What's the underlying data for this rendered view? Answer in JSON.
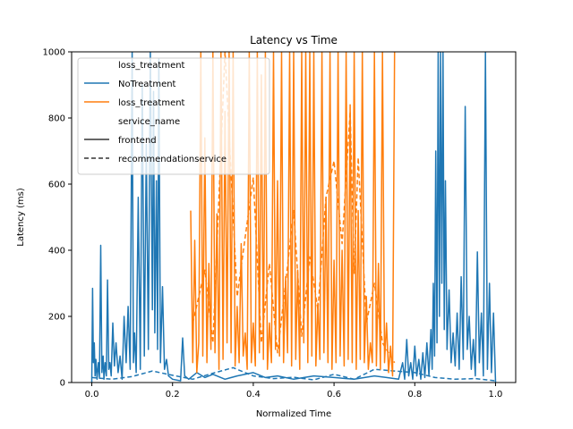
{
  "chart_data": {
    "type": "line",
    "title": "Latency vs Time",
    "xlabel": "Normalized Time",
    "ylabel": "Latency (ms)",
    "xlim": [
      -0.05,
      1.05
    ],
    "ylim": [
      0,
      1000
    ],
    "xticks": [
      0.0,
      0.2,
      0.4,
      0.6,
      0.8,
      1.0
    ],
    "xtick_labels": [
      "0.0",
      "0.2",
      "0.4",
      "0.6",
      "0.8",
      "1.0"
    ],
    "yticks": [
      0,
      200,
      400,
      600,
      800,
      1000
    ],
    "ytick_labels": [
      "0",
      "200",
      "400",
      "600",
      "800",
      "1000"
    ],
    "grid": false,
    "legend": {
      "placement": "upper-left",
      "hue_title": "loss_treatment",
      "style_title": "service_name",
      "entries": [
        {
          "label": "loss_treatment",
          "kind": "title"
        },
        {
          "label": "NoTreatment",
          "kind": "color",
          "color": "#1f77b4"
        },
        {
          "label": "loss_treatment",
          "kind": "color",
          "color": "#ff7f0e"
        },
        {
          "label": "service_name",
          "kind": "title"
        },
        {
          "label": "frontend",
          "kind": "style",
          "dash": "solid"
        },
        {
          "label": "recommendationservice",
          "kind": "style",
          "dash": "dashed"
        }
      ]
    },
    "series": [
      {
        "name": "NoTreatment / frontend",
        "color": "#1f77b4",
        "dash": "solid",
        "x": [
          0.0,
          0.002,
          0.004,
          0.006,
          0.008,
          0.01,
          0.013,
          0.016,
          0.019,
          0.022,
          0.025,
          0.028,
          0.03,
          0.033,
          0.036,
          0.039,
          0.042,
          0.045,
          0.048,
          0.052,
          0.056,
          0.06,
          0.065,
          0.07,
          0.075,
          0.08,
          0.085,
          0.09,
          0.095,
          0.1,
          0.103,
          0.106,
          0.11,
          0.115,
          0.12,
          0.125,
          0.13,
          0.135,
          0.14,
          0.145,
          0.15,
          0.153,
          0.156,
          0.16,
          0.163,
          0.166,
          0.17,
          0.175,
          0.18,
          0.185,
          0.19,
          0.2,
          0.22,
          0.225,
          0.23,
          0.24,
          0.26,
          0.28,
          0.3,
          0.33,
          0.36,
          0.4,
          0.43,
          0.46,
          0.5,
          0.55,
          0.6,
          0.65,
          0.7,
          0.73,
          0.76,
          0.77,
          0.775,
          0.78,
          0.785,
          0.79,
          0.795,
          0.8,
          0.805,
          0.81,
          0.815,
          0.82,
          0.825,
          0.83,
          0.835,
          0.84,
          0.843,
          0.846,
          0.849,
          0.852,
          0.855,
          0.858,
          0.861,
          0.864,
          0.867,
          0.87,
          0.873,
          0.876,
          0.88,
          0.885,
          0.89,
          0.895,
          0.9,
          0.905,
          0.91,
          0.915,
          0.92,
          0.925,
          0.93,
          0.935,
          0.94,
          0.945,
          0.95,
          0.955,
          0.96,
          0.965,
          0.97,
          0.975,
          0.98,
          0.985,
          0.99,
          0.995,
          1.0
        ],
        "y": [
          0,
          285,
          60,
          120,
          20,
          70,
          10,
          60,
          15,
          415,
          30,
          80,
          10,
          60,
          20,
          310,
          40,
          60,
          20,
          180,
          50,
          120,
          30,
          80,
          10,
          200,
          60,
          230,
          40,
          1000,
          60,
          150,
          30,
          560,
          40,
          900,
          80,
          720,
          100,
          1000,
          220,
          880,
          150,
          610,
          100,
          980,
          60,
          290,
          40,
          70,
          20,
          10,
          5,
          135,
          20,
          10,
          30,
          15,
          25,
          10,
          20,
          30,
          15,
          20,
          10,
          20,
          15,
          10,
          20,
          15,
          10,
          60,
          10,
          130,
          20,
          60,
          10,
          110,
          20,
          70,
          10,
          90,
          15,
          120,
          20,
          160,
          40,
          300,
          80,
          700,
          120,
          1000,
          200,
          1000,
          300,
          1000,
          160,
          610,
          100,
          280,
          60,
          150,
          50,
          210,
          40,
          320,
          70,
          835,
          100,
          200,
          40,
          130,
          20,
          395,
          60,
          210,
          20,
          1000,
          40,
          300,
          30,
          210,
          0
        ],
        "y_note": "values above 1000 clipped to axis limit"
      },
      {
        "name": "NoTreatment / recommendationservice",
        "color": "#1f77b4",
        "dash": "dashed",
        "x": [
          0.0,
          0.05,
          0.1,
          0.15,
          0.2,
          0.25,
          0.3,
          0.35,
          0.4,
          0.45,
          0.5,
          0.55,
          0.6,
          0.65,
          0.7,
          0.75,
          0.8,
          0.85,
          0.9,
          0.95,
          1.0
        ],
        "y": [
          15,
          10,
          18,
          35,
          22,
          10,
          28,
          45,
          20,
          12,
          16,
          8,
          25,
          10,
          40,
          35,
          30,
          15,
          10,
          12,
          5
        ]
      },
      {
        "name": "loss_treatment / frontend",
        "color": "#ff7f0e",
        "dash": "solid",
        "x": [
          0.245,
          0.25,
          0.255,
          0.26,
          0.265,
          0.27,
          0.275,
          0.28,
          0.285,
          0.29,
          0.295,
          0.3,
          0.305,
          0.31,
          0.315,
          0.32,
          0.325,
          0.33,
          0.335,
          0.34,
          0.345,
          0.35,
          0.355,
          0.36,
          0.365,
          0.37,
          0.375,
          0.38,
          0.385,
          0.39,
          0.395,
          0.4,
          0.405,
          0.41,
          0.415,
          0.42,
          0.425,
          0.43,
          0.435,
          0.44,
          0.445,
          0.45,
          0.455,
          0.46,
          0.465,
          0.47,
          0.475,
          0.48,
          0.485,
          0.49,
          0.495,
          0.5,
          0.505,
          0.51,
          0.515,
          0.52,
          0.525,
          0.53,
          0.535,
          0.54,
          0.545,
          0.55,
          0.555,
          0.56,
          0.565,
          0.57,
          0.575,
          0.58,
          0.585,
          0.59,
          0.595,
          0.6,
          0.605,
          0.61,
          0.615,
          0.62,
          0.625,
          0.63,
          0.635,
          0.64,
          0.645,
          0.65,
          0.655,
          0.66,
          0.665,
          0.67,
          0.675,
          0.68,
          0.685,
          0.69,
          0.695,
          0.7,
          0.705,
          0.71,
          0.715,
          0.72,
          0.725,
          0.73,
          0.735,
          0.74,
          0.745,
          0.75
        ],
        "y": [
          520,
          60,
          430,
          30,
          120,
          1000,
          80,
          740,
          60,
          360,
          100,
          1000,
          90,
          510,
          40,
          1000,
          70,
          820,
          120,
          1000,
          90,
          1000,
          50,
          230,
          60,
          420,
          80,
          150,
          40,
          1000,
          60,
          180,
          50,
          1000,
          90,
          930,
          70,
          1000,
          40,
          180,
          60,
          1000,
          100,
          610,
          80,
          1000,
          60,
          320,
          90,
          1000,
          50,
          1000,
          70,
          340,
          40,
          1000,
          120,
          1000,
          60,
          1000,
          80,
          1000,
          50,
          240,
          70,
          1000,
          90,
          560,
          60,
          1000,
          40,
          370,
          60,
          1000,
          80,
          400,
          50,
          1000,
          70,
          840,
          60,
          1000,
          40,
          520,
          70,
          1000,
          60,
          260,
          40,
          120,
          60,
          1000,
          50,
          360,
          40,
          1000,
          60,
          180,
          30,
          110,
          20,
          1000
        ]
      },
      {
        "name": "loss_treatment / recommendationservice",
        "color": "#ff7f0e",
        "dash": "dashed",
        "x": [
          0.25,
          0.28,
          0.3,
          0.33,
          0.36,
          0.4,
          0.42,
          0.44,
          0.46,
          0.48,
          0.5,
          0.52,
          0.54,
          0.56,
          0.58,
          0.6,
          0.62,
          0.64,
          0.65,
          0.66,
          0.68,
          0.7,
          0.72,
          0.75
        ],
        "y": [
          180,
          340,
          120,
          1000,
          260,
          620,
          120,
          360,
          90,
          300,
          520,
          140,
          380,
          220,
          560,
          670,
          420,
          820,
          330,
          680,
          180,
          300,
          120,
          60
        ]
      }
    ]
  }
}
